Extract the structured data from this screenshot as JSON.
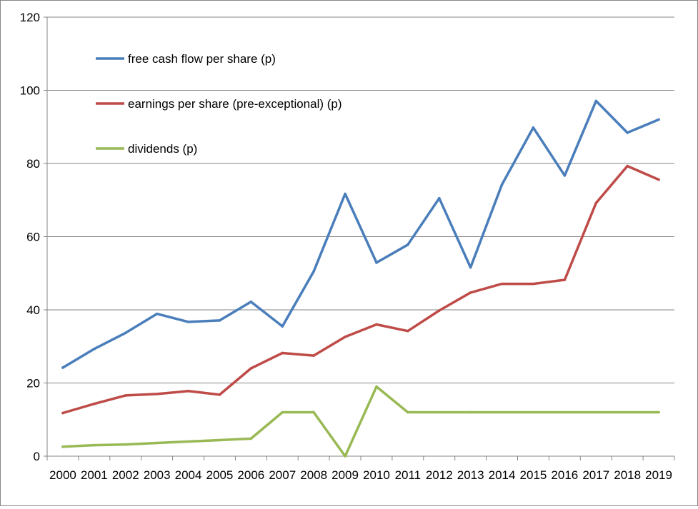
{
  "chart_data": {
    "type": "line",
    "title": "",
    "xlabel": "",
    "ylabel": "",
    "ylim": [
      0,
      120
    ],
    "yticks": [
      0,
      20,
      40,
      60,
      80,
      100,
      120
    ],
    "grid": true,
    "legend_position": "top-left",
    "categories": [
      "2000",
      "2001",
      "2002",
      "2003",
      "2004",
      "2005",
      "2006",
      "2007",
      "2008",
      "2009",
      "2010",
      "2011",
      "2012",
      "2013",
      "2014",
      "2015",
      "2016",
      "2017",
      "2018",
      "2019"
    ],
    "series": [
      {
        "name": "free cash flow per share (p)",
        "color": "#4a7ebb",
        "values": [
          24.2,
          29.3,
          33.7,
          38.9,
          36.7,
          37.1,
          42.2,
          35.5,
          50.5,
          71.7,
          52.9,
          57.8,
          70.5,
          51.6,
          74.2,
          89.8,
          76.7,
          97.1,
          88.4,
          92.0
        ]
      },
      {
        "name": "earnings per share (pre-exceptional) (p)",
        "color": "#be4b48",
        "values": [
          11.8,
          14.3,
          16.6,
          17.0,
          17.8,
          16.8,
          24.0,
          28.2,
          27.5,
          32.6,
          36.0,
          34.2,
          39.8,
          44.7,
          47.1,
          47.1,
          48.2,
          69.2,
          79.3,
          75.6
        ]
      },
      {
        "name": "dividends (p)",
        "color": "#98b954",
        "values": [
          2.6,
          3.0,
          3.2,
          3.6,
          4.0,
          4.4,
          4.8,
          12.0,
          12.0,
          0.0,
          19.0,
          12.0,
          12.0,
          12.0,
          12.0,
          12.0,
          12.0,
          12.0,
          12.0,
          12.0
        ]
      }
    ]
  }
}
